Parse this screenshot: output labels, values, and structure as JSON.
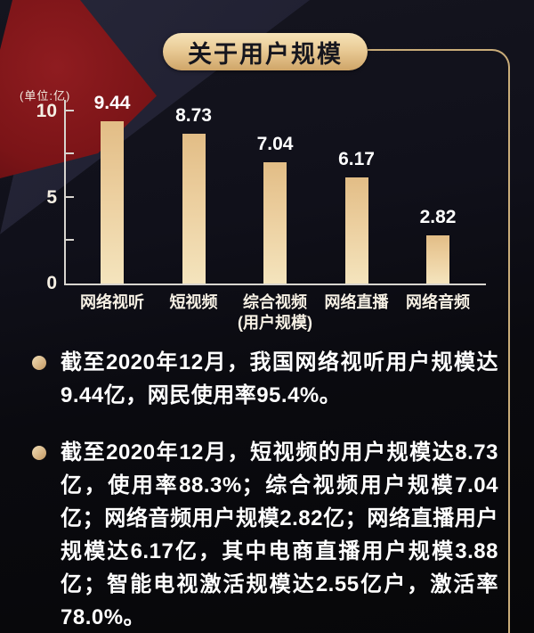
{
  "header": {
    "title": "关于用户规模"
  },
  "chart_data": {
    "type": "bar",
    "title": "关于用户规模",
    "unit_label": "(单位:亿)",
    "categories": [
      "网络视听",
      "短视频",
      "综合视频",
      "网络直播",
      "网络音频"
    ],
    "category_sublabels": [
      "",
      "",
      "(用户规模)",
      "",
      ""
    ],
    "values": [
      9.44,
      8.73,
      7.04,
      6.17,
      2.82
    ],
    "value_labels": [
      "9.44",
      "8.73",
      "7.04",
      "6.17",
      "2.82"
    ],
    "ylim": [
      0,
      10
    ],
    "yticks": [
      2.5,
      5,
      7.5,
      10
    ],
    "ytick_labeled": [
      0,
      5,
      10
    ],
    "grid": false,
    "legend": false
  },
  "bullets": [
    {
      "text": "截至2020年12月，我国网络视听用户规模达9.44亿，网民使用率95.4%。"
    },
    {
      "text": "截至2020年12月，短视频的用户规模达8.73亿，使用率88.3%；综合视频用户规模7.04亿；网络音频用户规模2.82亿；网络直播用户规模达6.17亿，其中电商直播用户规模3.88亿；智能电视激活规模达2.55亿户，激活率78.0%。"
    }
  ],
  "colors": {
    "background_dark": "#0a0a0f",
    "navy_band": "#1b1b2c",
    "red_ribbon": "#7b1417",
    "gold_line": "#c9ac79",
    "gold_pill_top": "#f6e3b8",
    "gold_pill_bottom": "#cfa568",
    "bar_top": "#e2bd86",
    "bar_bottom": "#f4e4bd",
    "axis": "#d8d5cf",
    "text": "#ffffff"
  }
}
